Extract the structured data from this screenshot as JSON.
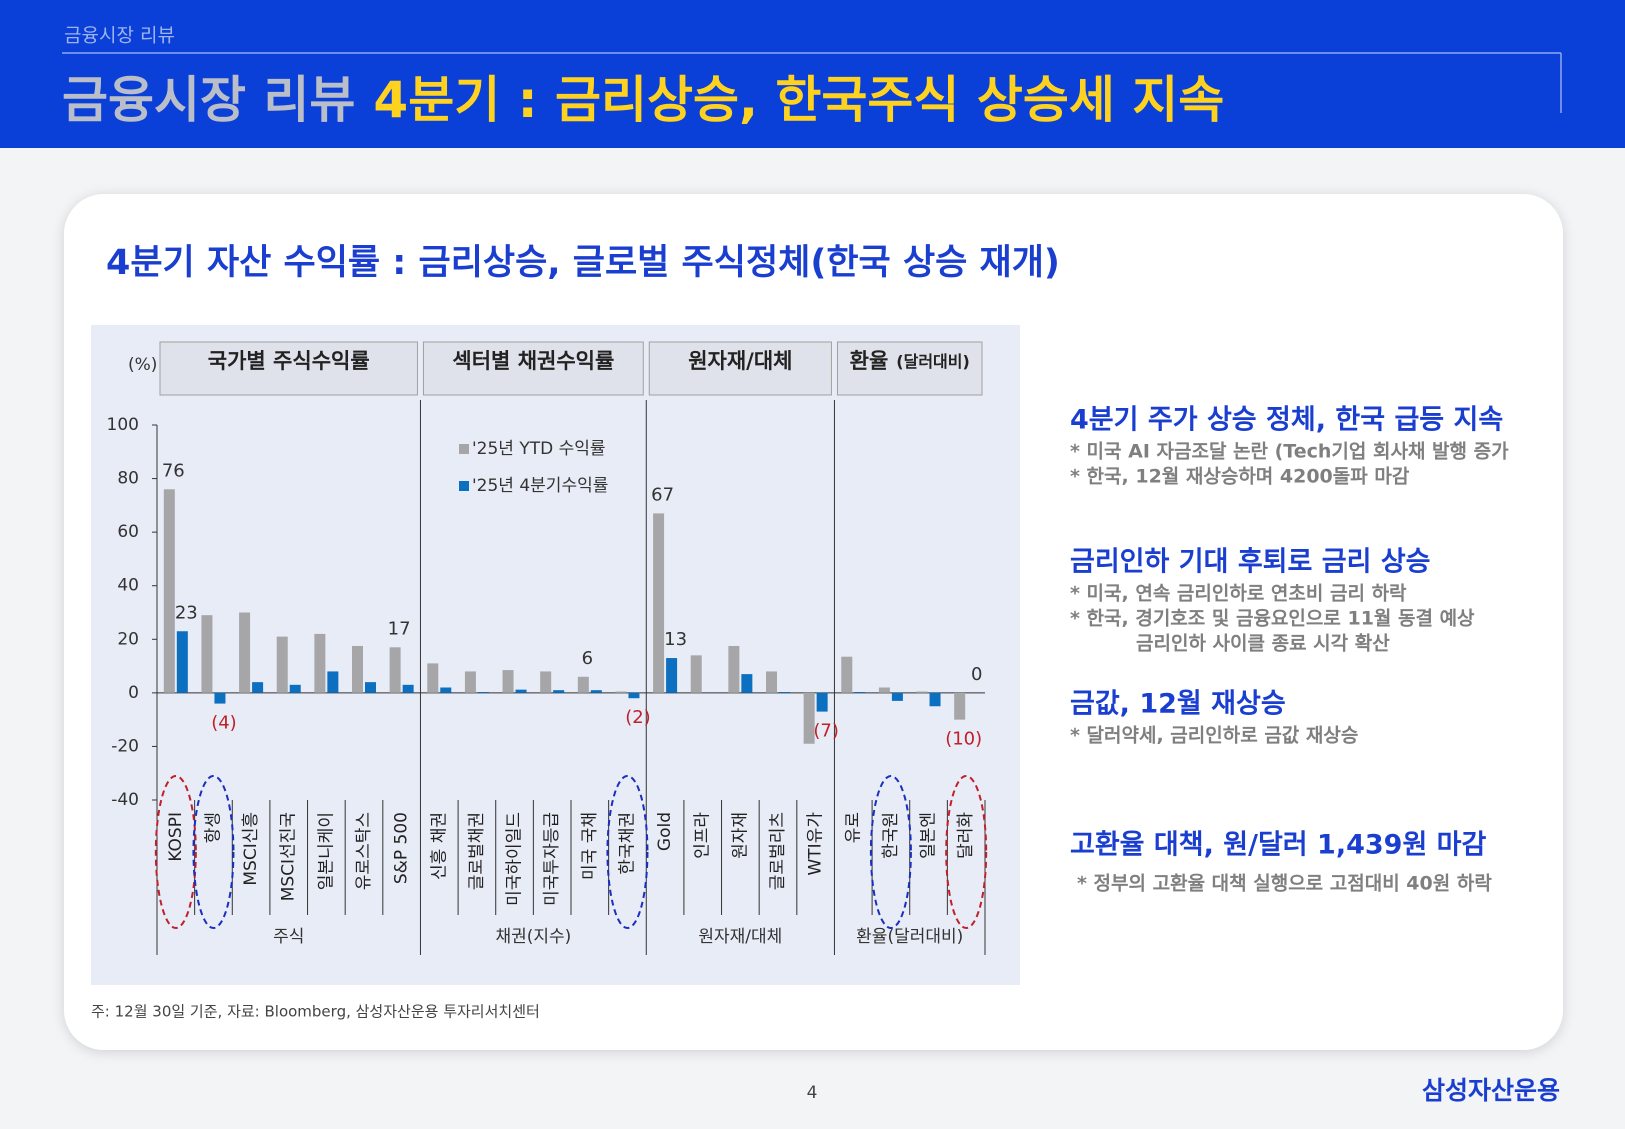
{
  "header": {
    "section": "금융시장 리뷰",
    "title_gray": "금융시장 리뷰",
    "title_highlight": "4분기 : 금리상승, 한국주식 상승세 지속"
  },
  "card_title": "4분기 자산 수익률 : 금리상승, 글로벌 주식정체(한국 상승 재개)",
  "chart_data": {
    "type": "bar",
    "ylabel": "(%)",
    "categories": [
      "KOSPI",
      "항셍",
      "MSCI신흥",
      "MSCI선진국",
      "일본니케이",
      "유로스탁스",
      "S&P 500",
      "신흥 채권",
      "글로벌채권",
      "미국하이일드",
      "미국투자등급",
      "미국 국채",
      "한국채권",
      "Gold",
      "인프라",
      "원자재",
      "글로벌리츠",
      "WTI유가",
      "유로",
      "한국원",
      "일본엔",
      "달러화"
    ],
    "groups": [
      {
        "name": "국가별 주식수익률",
        "bottom": "주식",
        "start": 0,
        "end": 6
      },
      {
        "name": "섹터별 채권수익률",
        "bottom": "채권(지수)",
        "start": 7,
        "end": 12
      },
      {
        "name": "원자재/대체",
        "bottom": "원자재/대체",
        "start": 13,
        "end": 17
      },
      {
        "name": "환율",
        "note": "(달러대비)",
        "bottom": "환율(달러대비)",
        "start": 18,
        "end": 21
      }
    ],
    "series": [
      {
        "name": "'25년 YTD 수익률",
        "color": "#a6a6a8",
        "values": [
          76,
          29,
          30,
          21,
          22,
          17.5,
          17,
          11,
          8,
          8.5,
          8,
          6,
          0.5,
          67,
          14,
          17.5,
          8,
          -19,
          13.5,
          2,
          0.5,
          -10
        ],
        "value_labels": [
          "76",
          null,
          null,
          null,
          null,
          null,
          "17",
          null,
          null,
          null,
          null,
          "6",
          null,
          "67",
          null,
          null,
          null,
          null,
          null,
          null,
          null,
          "(10)"
        ]
      },
      {
        "name": "'25년 4분기수익률",
        "color": "#0c6fc0",
        "values": [
          23,
          -4,
          4,
          3,
          8,
          4,
          3,
          2,
          0.3,
          1.2,
          1,
          1,
          -2,
          13,
          0,
          7,
          0.3,
          -7,
          0.3,
          -3,
          -5,
          0
        ],
        "value_labels": [
          "23",
          "(4)",
          null,
          null,
          null,
          null,
          null,
          null,
          null,
          null,
          null,
          null,
          "(2)",
          "13",
          null,
          null,
          null,
          "(7)",
          null,
          null,
          null,
          "0"
        ]
      }
    ],
    "ylim": [
      -40,
      100
    ],
    "yticks": [
      -40,
      -20,
      0,
      20,
      40,
      60,
      80,
      100
    ]
  },
  "insights": [
    {
      "headline": "4분기 주가 상승 정체, 한국 급등 지속",
      "notes": [
        "* 미국 AI 자금조달 논란 (Tech기업 회사채 발행 증가",
        "* 한국, 12월 재상승하며 4200돌파 마감"
      ]
    },
    {
      "headline": "금리인하 기대 후퇴로 금리 상승",
      "notes": [
        "* 미국, 연속 금리인하로 연초비 금리 하락",
        "* 한국, 경기호조 및 금융요인으로 11월 동결 예상",
        "금리인하 사이클 종료 시각 확산"
      ]
    },
    {
      "headline": "금값, 12월 재상승",
      "notes": [
        "* 달러약세, 금리인하로 금값 재상승"
      ]
    },
    {
      "headline": "고환율 대책,  원/달러 1,439원 마감",
      "notes": [
        "* 정부의 고환율 대책 실행으로 고점대비 40원 하락"
      ]
    }
  ],
  "note": "주: 12월 30일 기준, 자료: Bloomberg, 삼성자산운용 투자리서치센터",
  "page_number": "4",
  "logo": "삼성자산운용"
}
